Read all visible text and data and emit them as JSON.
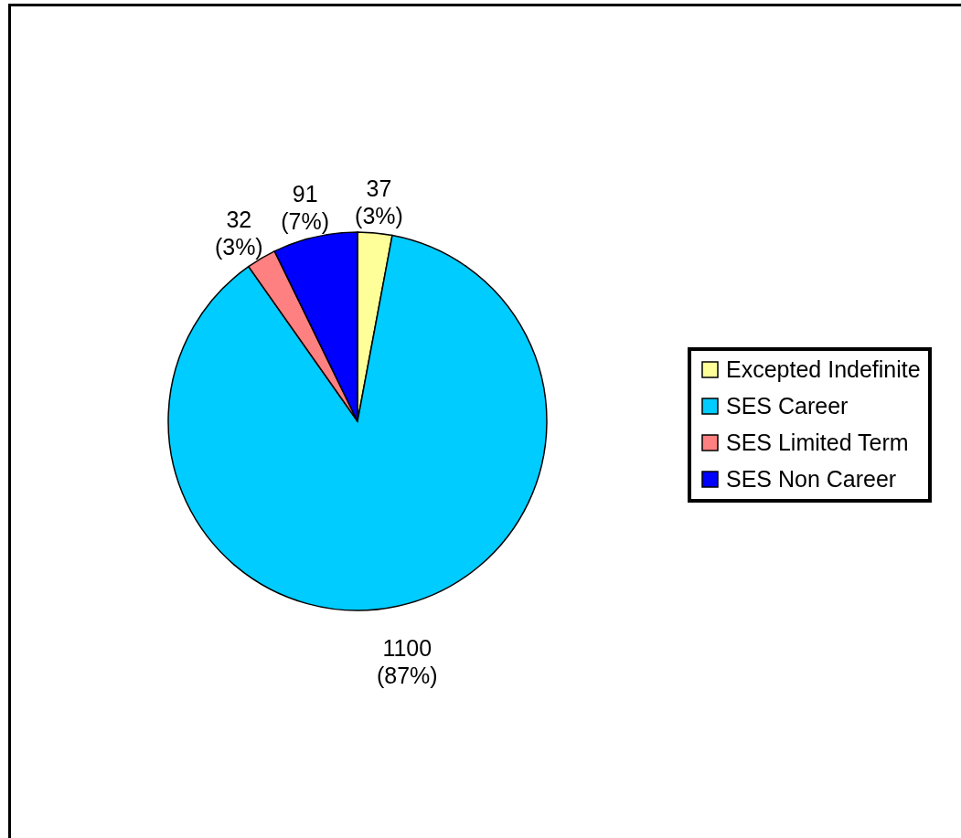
{
  "chart_data": {
    "type": "pie",
    "categories": [
      "Excepted Indefinite",
      "SES Career",
      "SES Limited Term",
      "SES Non Career"
    ],
    "values": [
      37,
      1100,
      32,
      91
    ],
    "colors": [
      "#ffff99",
      "#00ccff",
      "#ff8080",
      "#0000ff"
    ],
    "value_labels": [
      "37\n(3%)",
      "1100\n(87%)",
      "32\n(3%)",
      "91\n(7%)"
    ],
    "legend": "right"
  }
}
